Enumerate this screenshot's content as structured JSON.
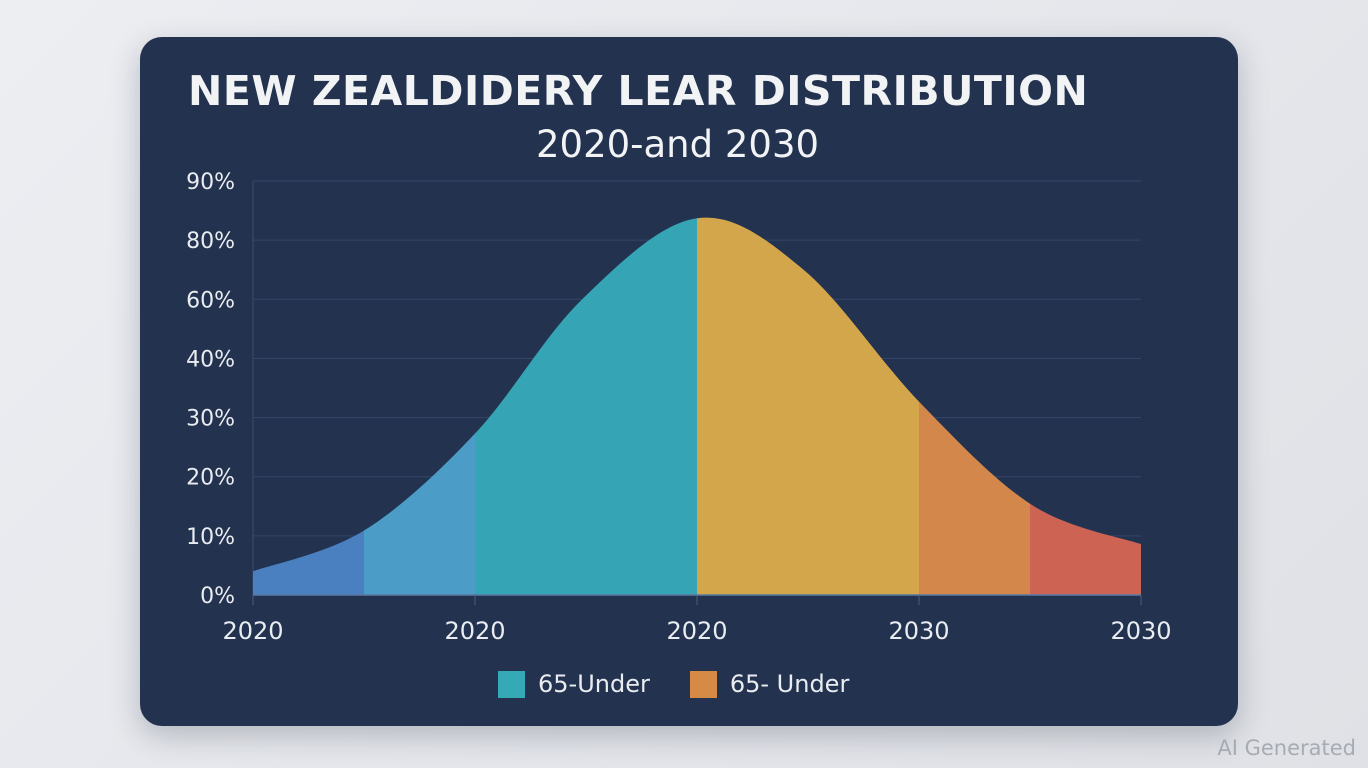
{
  "chart_data": {
    "type": "area",
    "title": "NEW ZEALDIDERY LEAR DISTRIBUTION",
    "subtitle": "2020-and 2030",
    "y_tick_labels": [
      "0%",
      "10%",
      "20%",
      "30%",
      "40%",
      "60%",
      "80%",
      "90%"
    ],
    "y_tick_values": [
      0,
      10,
      20,
      30,
      40,
      60,
      80,
      90
    ],
    "x_tick_labels": [
      "2020",
      "2020",
      "2020",
      "2030",
      "2030"
    ],
    "grid": true,
    "curve": {
      "x": [
        0,
        0.5,
        1,
        1.48,
        2,
        2.48,
        3,
        3.51,
        4
      ],
      "y": [
        4,
        10.9,
        27.3,
        59.8,
        83.7,
        70,
        32.7,
        15.2,
        8.6
      ]
    },
    "segments": [
      {
        "from": 0,
        "to": 0.5,
        "color": "#4a7fc0"
      },
      {
        "from": 0.5,
        "to": 1,
        "color": "#4b9dc8"
      },
      {
        "from": 1,
        "to": 2,
        "color": "#35a4b4"
      },
      {
        "from": 2,
        "to": 3,
        "color": "#d4a64c"
      },
      {
        "from": 3,
        "to": 3.5,
        "color": "#d3874b"
      },
      {
        "from": 3.5,
        "to": 4,
        "color": "#cd6352"
      }
    ],
    "legend": [
      {
        "label": "65-Under",
        "color": "#35aab6"
      },
      {
        "label": "65- Under",
        "color": "#d78a46"
      }
    ],
    "legend_placement": "bottom"
  },
  "watermark": "AI Generated"
}
